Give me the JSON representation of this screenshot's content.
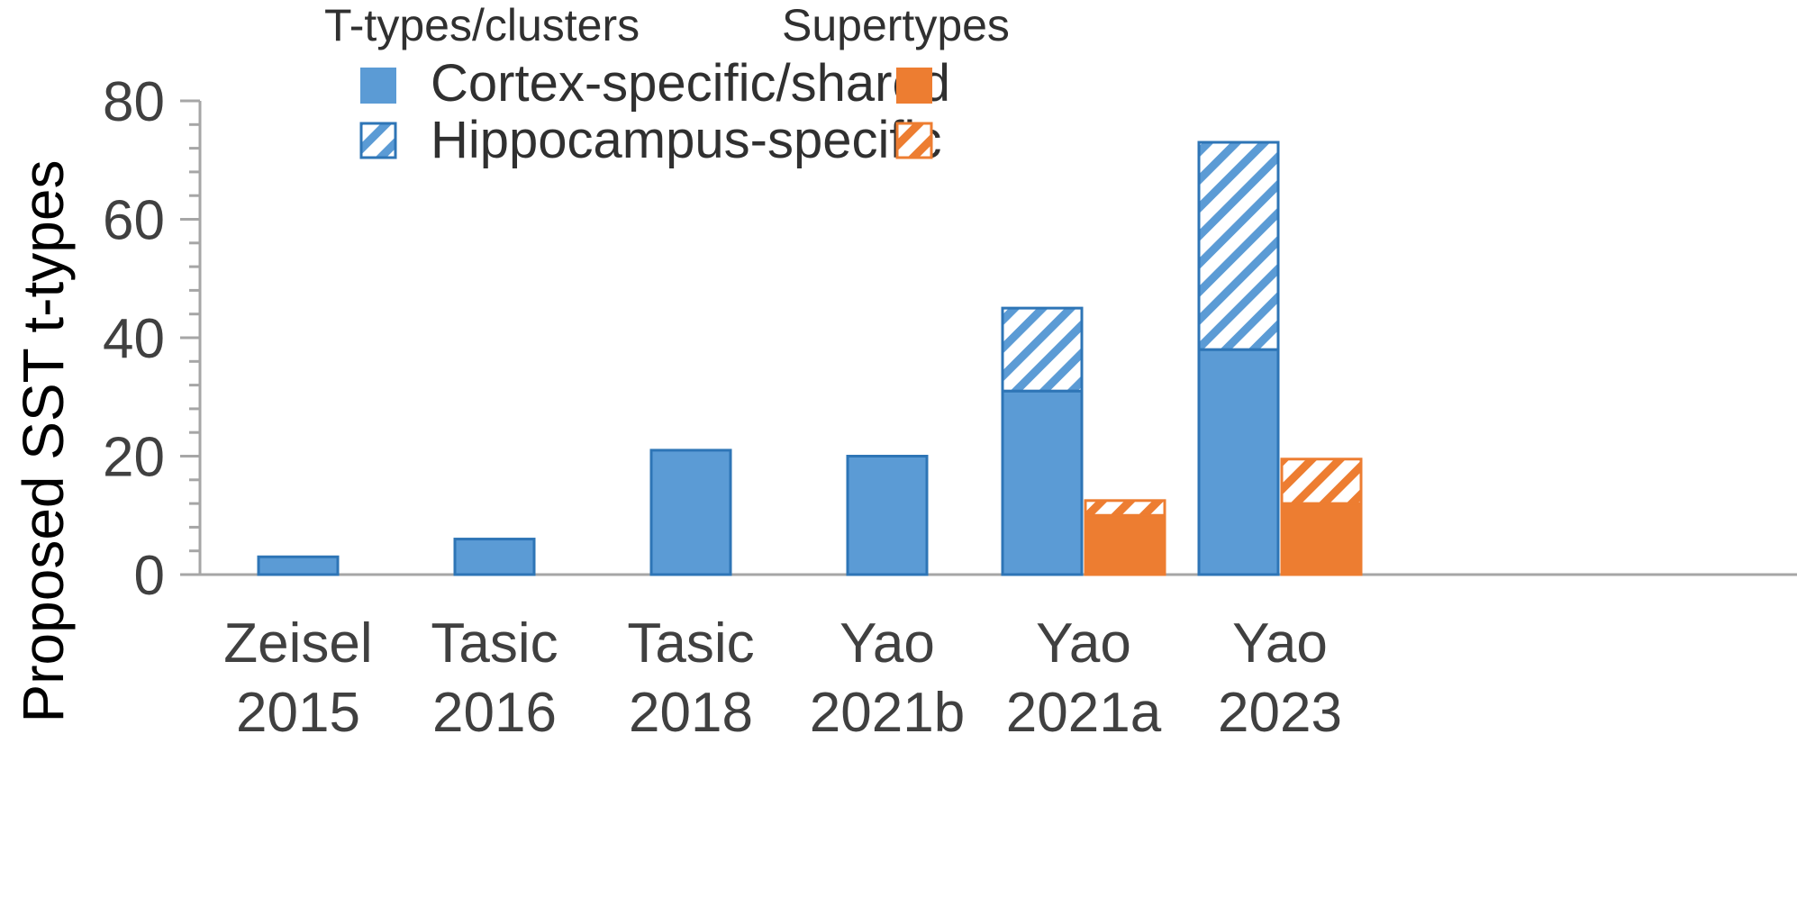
{
  "chart_data": {
    "type": "bar",
    "ylabel": "Proposed SST t-types",
    "xlabel": "",
    "ylim": [
      0,
      80
    ],
    "yticks": [
      0,
      20,
      40,
      60,
      80
    ],
    "minor_tick_step": 4,
    "categories": [
      [
        "Zeisel",
        "2015"
      ],
      [
        "Tasic",
        "2016"
      ],
      [
        "Tasic",
        "2018"
      ],
      [
        "Yao",
        "2021b"
      ],
      [
        "Yao",
        "2021a"
      ],
      [
        "Yao",
        "2023"
      ]
    ],
    "groups": [
      {
        "name": "T-types/clusters",
        "color": "#5b9bd5",
        "edge": "#2e75b6",
        "series": [
          {
            "name": "Cortex-specific/shared",
            "fill": "solid",
            "values": [
              3,
              6,
              21,
              20,
              31,
              38
            ]
          },
          {
            "name": "Hippocampus-specific",
            "fill": "hatched",
            "values": [
              0,
              0,
              0,
              0,
              14,
              35
            ]
          }
        ]
      },
      {
        "name": "Supertypes",
        "color": "#ed7d31",
        "edge": "#ed7d31",
        "series": [
          {
            "name": "Cortex-specific/shared",
            "fill": "solid",
            "values": [
              0,
              0,
              0,
              0,
              10,
              12
            ]
          },
          {
            "name": "Hippocampus-specific",
            "fill": "hatched",
            "values": [
              0,
              0,
              0,
              0,
              2.5,
              7.5
            ]
          }
        ]
      }
    ],
    "legend": {
      "headers": [
        "T-types/clusters",
        "Supertypes"
      ],
      "entries": [
        "Cortex-specific/shared",
        "Hippocampus-specific"
      ],
      "placement": "top-center"
    },
    "grid": false
  }
}
